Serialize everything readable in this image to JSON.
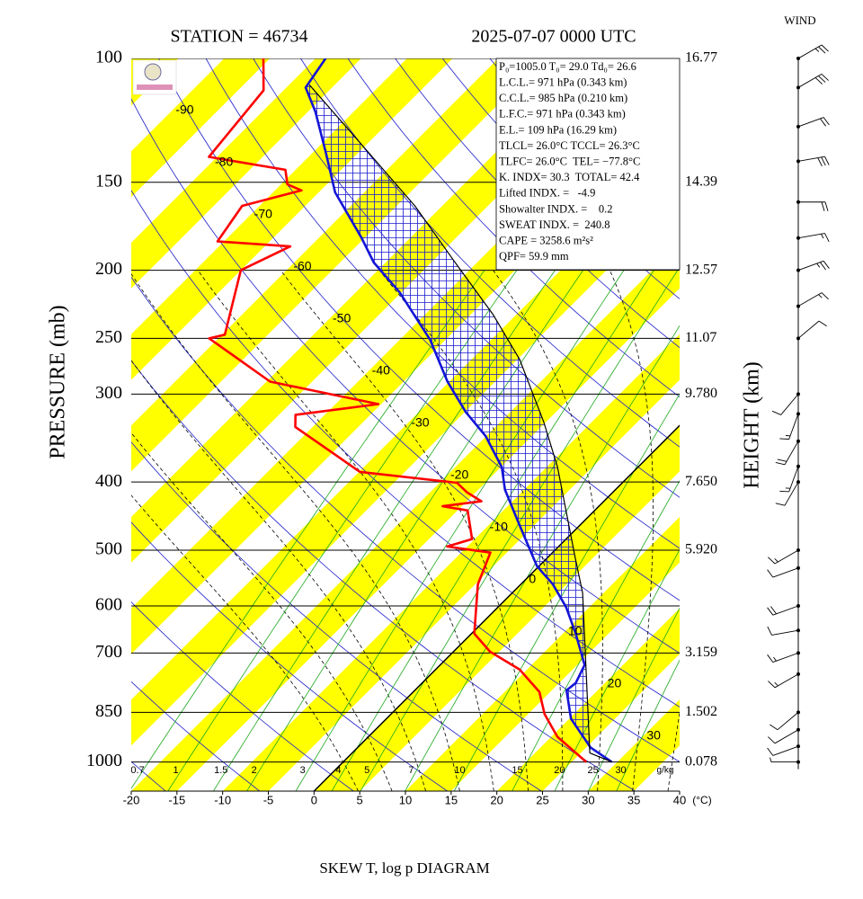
{
  "chart_data": {
    "type": "skewt",
    "station": "STATION = 46734",
    "time": "2025-07-07 0000 UTC",
    "xlabel": "SKEW T, log p DIAGRAM",
    "xunit": "(°C)",
    "ylabel": "PRESSURE (mb)",
    "y2label": "HEIGHT (km)",
    "wind_label": "WIND",
    "xlim": [
      -20,
      40
    ],
    "xticks": [
      -20,
      -15,
      -10,
      -5,
      0,
      5,
      10,
      15,
      20,
      25,
      30,
      35,
      40
    ],
    "ylim": [
      1100,
      100
    ],
    "yticks": [
      100,
      150,
      200,
      250,
      300,
      400,
      500,
      600,
      700,
      850,
      1000
    ],
    "log_scale": true,
    "height_axis": {
      "pressure": [
        100,
        150,
        200,
        250,
        300,
        400,
        500,
        700,
        850,
        1000
      ],
      "heights": [
        16.77,
        14.39,
        12.57,
        11.07,
        {
          "value": 9.78,
          "label": "9.780"
        },
        {
          "value": 7.65,
          "label": "7.650"
        },
        {
          "value": 5.92,
          "label": "5.920"
        },
        3.159,
        1.502,
        0.078
      ]
    },
    "isotherm_labels": [
      -90,
      -80,
      -70,
      -60,
      -50,
      -40,
      -30,
      -20,
      -10,
      0,
      10,
      20,
      30
    ],
    "mixing_ratios": [
      0.7,
      1,
      1.5,
      2,
      3,
      4,
      5,
      7,
      10,
      15,
      20,
      25,
      30
    ],
    "mixing_ratio_unit": "g/kg",
    "info_lines": [
      "P₀=1005.0 T₀= 29.0 Td₀= 26.6",
      "L.C.L.= 971 hPa (0.343 km)",
      "C.C.L.= 985 hPa (0.210 km)",
      "L.F.C.= 971 hPa (0.343 km)",
      "E.L.= 109 hPa (16.29 km)",
      "TLCL= 26.0°C TCCL= 26.3°C",
      "TLFC= 26.0°C  TEL= −77.8°C",
      "K. INDX= 30.3  TOTAL= 42.4",
      "Lifted INDX. =   -4.9",
      "Showalter INDX. =    0.2",
      "SWEAT INDX. =  240.8",
      "CAPE = 3258.6 m²s²",
      "QPF= 59.9 mm"
    ],
    "profiles": [
      {
        "color": "#ff0000",
        "pressure": [
          1000,
          921,
          855,
          795,
          739,
          697,
          657,
          559,
          504,
          494,
          482,
          439,
          433,
          426,
          414,
          401,
          387,
          334,
          321,
          310,
          288,
          250,
          247,
          200,
          185,
          182,
          162,
          154,
          151,
          144,
          138,
          111,
          100
        ],
        "values": [
          26.6,
          20.7,
          16.8,
          13.8,
          9.2,
          4.0,
          0.3,
          -4.7,
          -6.8,
          -12.2,
          -10.3,
          -13.9,
          -17.1,
          -13.4,
          -15.9,
          -18.1,
          -29.9,
          -41.9,
          -43.2,
          -35.3,
          -49.6,
          -61.0,
          -59.7,
          -65.0,
          -62.2,
          -70.7,
          -71.9,
          -67.1,
          -69.3,
          -71.1,
          -80.9,
          -82.2,
          -85.7
        ]
      },
      {
        "color": "#1414d8",
        "pressure": [
          1000,
          954,
          868,
          791,
          772,
          728,
          657,
          603,
          559,
          527,
          497,
          455,
          410,
          381,
          344,
          318,
          288,
          251,
          215,
          195,
          180,
          155,
          136,
          119,
          110,
          100
        ],
        "values": [
          29.4,
          25.5,
          20.2,
          16.6,
          16.8,
          15.8,
          11.4,
          7.5,
          3.5,
          -0.2,
          -3.0,
          -7.2,
          -12.1,
          -14.9,
          -20.1,
          -24.9,
          -30.2,
          -36.7,
          -45.2,
          -51.3,
          -55.3,
          -63.2,
          -68.6,
          -74.2,
          -77.9,
          -78.9
        ]
      },
      {
        "color": "#000000",
        "pressure": [
          1000,
          971,
          575,
          512,
          381,
          329,
          268,
          231,
          194,
          162,
          132,
          109
        ],
        "values": [
          29.4,
          26.0,
          7.7,
          3.0,
          -8.8,
          -15.2,
          -24.7,
          -32.6,
          -42.7,
          -53.0,
          -65.8,
          -77.8
        ]
      }
    ],
    "wind": {
      "pressure": [
        100,
        110,
        125,
        140,
        160,
        180,
        200,
        225,
        250,
        300,
        320,
        350,
        380,
        400,
        500,
        530,
        600,
        650,
        700,
        750,
        850,
        900,
        950,
        1000
      ],
      "direction": [
        60,
        60,
        70,
        80,
        90,
        80,
        70,
        60,
        50,
        220,
        200,
        210,
        200,
        210,
        240,
        250,
        250,
        260,
        250,
        240,
        230,
        240,
        250,
        270
      ],
      "speed": [
        25,
        30,
        20,
        30,
        20,
        15,
        25,
        15,
        10,
        10,
        15,
        20,
        15,
        10,
        15,
        10,
        20,
        10,
        15,
        15,
        10,
        10,
        10,
        5
      ]
    }
  }
}
